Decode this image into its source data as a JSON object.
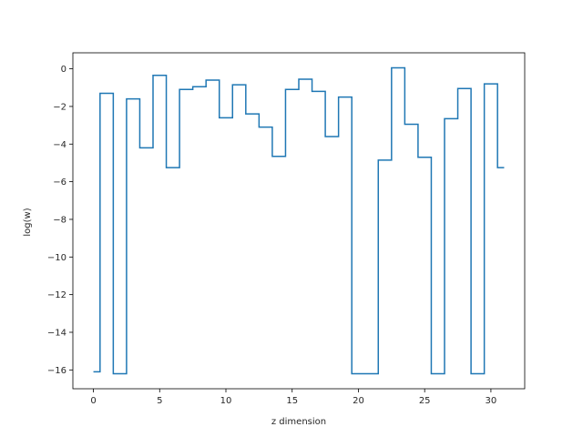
{
  "chart_data": {
    "type": "line",
    "drawstyle": "steps-mid",
    "title": "",
    "xlabel": "z dimension",
    "ylabel": "log(w)",
    "xlim": [
      -1.55,
      32.55
    ],
    "ylim": [
      -17.0,
      0.85
    ],
    "xticks": [
      0,
      5,
      10,
      15,
      20,
      25,
      30
    ],
    "yticks": [
      0,
      -2,
      -4,
      -6,
      -8,
      -10,
      -12,
      -14,
      -16
    ],
    "ytick_labels": [
      "0",
      "−2",
      "−4",
      "−6",
      "−8",
      "−10",
      "−12",
      "−14",
      "−16"
    ],
    "grid": false,
    "line_color": "#1f77b4",
    "x": [
      0,
      1,
      2,
      3,
      4,
      5,
      6,
      7,
      8,
      9,
      10,
      11,
      12,
      13,
      14,
      15,
      16,
      17,
      18,
      19,
      20,
      21,
      22,
      23,
      24,
      25,
      26,
      27,
      28,
      29,
      30,
      31
    ],
    "y": [
      -16.1,
      -1.3,
      -16.2,
      -1.6,
      -4.2,
      -0.35,
      -5.25,
      -1.1,
      -0.95,
      -0.6,
      -2.6,
      -0.85,
      -2.4,
      -3.1,
      -4.65,
      -1.1,
      -0.55,
      -1.2,
      -3.6,
      -1.5,
      -16.2,
      -16.2,
      -4.85,
      0.05,
      -2.95,
      -4.7,
      -16.2,
      -2.65,
      -1.05,
      -16.2,
      -0.8,
      -5.25
    ]
  }
}
